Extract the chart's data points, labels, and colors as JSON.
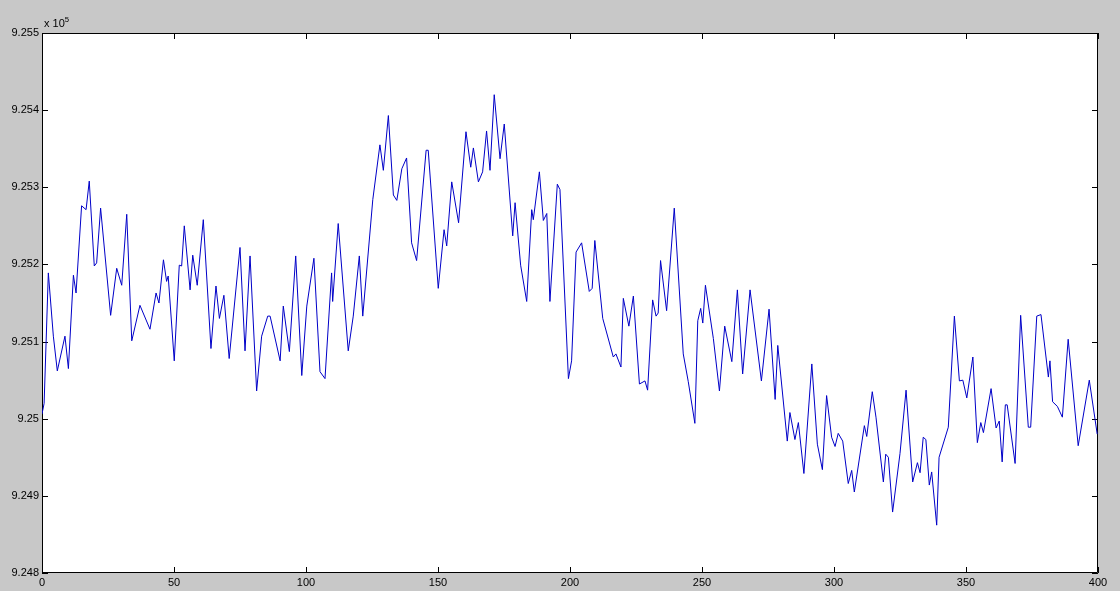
{
  "chart_data": {
    "type": "line",
    "annotations": [
      "x 10$^{5}$"
    ],
    "series": [
      {
        "color": "#0000c8",
        "x": [
          0,
          0.8,
          2.4,
          4.3,
          5.8,
          8.7,
          10,
          11.9,
          12.9,
          15,
          16.7,
          17.9,
          19.8,
          20.7,
          22.2,
          26,
          28.3,
          30.2,
          32.1,
          34,
          37.1,
          40.9,
          43.2,
          44.3,
          46,
          47.2,
          47.8,
          50.1,
          52,
          52.9,
          53.9,
          56.1,
          57.1,
          58.8,
          61.1,
          64,
          65.9,
          67.2,
          68.9,
          70.9,
          75,
          76.9,
          78.8,
          81.3,
          83.2,
          85.5,
          86.4,
          90.2,
          91.4,
          93.7,
          96.1,
          98.4,
          100.3,
          103,
          105.3,
          107.2,
          109.7,
          110.1,
          112.2,
          116,
          117.9,
          120.2,
          121.5,
          125.3,
          128,
          129.3,
          131.2,
          133.1,
          134.4,
          136.3,
          138.1,
          140,
          141.9,
          145.5,
          146.3,
          150.1,
          152.3,
          153.3,
          155.2,
          157.8,
          160.6,
          162.4,
          163.4,
          165.3,
          166.9,
          168.4,
          169.7,
          171.3,
          173.5,
          175.1,
          178.3,
          179.2,
          181.3,
          183.6,
          185.5,
          186.1,
          188.4,
          189.9,
          191.2,
          192.4,
          195.2,
          196.2,
          199.4,
          200.6,
          202.3,
          204.4,
          207.3,
          208.4,
          209.4,
          212.4,
          216.4,
          217.4,
          219.3,
          220.2,
          222.3,
          224,
          226.3,
          228.4,
          229.4,
          231.3,
          232.6,
          233.4,
          234.3,
          236.6,
          239.5,
          242.9,
          244.8,
          247.3,
          248.4,
          249.5,
          250.3,
          251.3,
          254.3,
          256.6,
          258.6,
          261.3,
          263.4,
          265.4,
          268.2,
          272.5,
          275.4,
          277.7,
          278.7,
          282.3,
          283.3,
          285.2,
          286.5,
          288.6,
          291.6,
          293.7,
          295.6,
          297.2,
          299.1,
          300.4,
          301.6,
          303.3,
          305.4,
          306.7,
          307.7,
          311.5,
          312.4,
          314.5,
          315.9,
          318.7,
          319.6,
          320.6,
          322.2,
          325,
          327.3,
          329.8,
          331.6,
          332.6,
          333.8,
          334.8,
          336.1,
          337,
          338.9,
          339.8,
          343.3,
          345.6,
          347.5,
          348.8,
          350.3,
          352.6,
          354.3,
          355.6,
          356.6,
          359.5,
          361.4,
          362.6,
          363.7,
          364.9,
          365.6,
          368.6,
          370.7,
          373.6,
          374.5,
          376.8,
          378.4,
          381.2,
          381.8,
          382.8,
          384.6,
          386.5,
          388.7,
          392.5,
          396.7,
          399.7
        ],
        "values": [
          9.25006,
          9.2502,
          9.25189,
          9.25107,
          9.25062,
          9.25107,
          9.25065,
          9.25186,
          9.25163,
          9.25276,
          9.25271,
          9.25308,
          9.25198,
          9.25202,
          9.25273,
          9.25134,
          9.25195,
          9.25173,
          9.25265,
          9.25101,
          9.25147,
          9.25116,
          9.25163,
          9.2515,
          9.25206,
          9.25178,
          9.25185,
          9.25075,
          9.25199,
          9.25198,
          9.2525,
          9.25167,
          9.25212,
          9.25173,
          9.25258,
          9.25091,
          9.25172,
          9.2513,
          9.2516,
          9.25078,
          9.25222,
          9.25088,
          9.25211,
          9.25036,
          9.25107,
          9.25133,
          9.25133,
          9.25075,
          9.25146,
          9.25087,
          9.25211,
          9.25056,
          9.25146,
          9.25208,
          9.25061,
          9.25052,
          9.25189,
          9.25152,
          9.25253,
          9.25088,
          9.25133,
          9.25211,
          9.25133,
          9.25284,
          9.25355,
          9.25322,
          9.25393,
          9.2529,
          9.25283,
          9.25324,
          9.25338,
          9.25228,
          9.25205,
          9.25348,
          9.25348,
          9.25169,
          9.25245,
          9.25224,
          9.25307,
          9.25254,
          9.25372,
          9.25326,
          9.25351,
          9.25307,
          9.2532,
          9.25373,
          9.25322,
          9.2542,
          9.25337,
          9.25382,
          9.25237,
          9.2528,
          9.25199,
          9.25152,
          9.25271,
          9.25258,
          9.2532,
          9.25257,
          9.25266,
          9.25152,
          9.25304,
          9.25297,
          9.25052,
          9.25075,
          9.25216,
          9.25228,
          9.25165,
          9.25169,
          9.25231,
          9.2513,
          9.2508,
          9.25084,
          9.25067,
          9.25156,
          9.2512,
          9.25159,
          9.25045,
          9.25049,
          9.25037,
          9.25154,
          9.25133,
          9.25137,
          9.25205,
          9.2514,
          9.25273,
          9.25084,
          9.25048,
          9.24994,
          9.25127,
          9.25143,
          9.25124,
          9.25173,
          9.25104,
          9.25036,
          9.2512,
          9.25074,
          9.25167,
          9.25058,
          9.25167,
          9.25049,
          9.25142,
          9.25025,
          9.25095,
          9.24971,
          9.25008,
          9.24973,
          9.24995,
          9.24929,
          9.25071,
          9.24967,
          9.24934,
          9.2503,
          9.24976,
          9.24964,
          9.24981,
          9.24971,
          9.24916,
          9.24933,
          9.24905,
          9.24991,
          9.24977,
          9.25035,
          9.25002,
          9.24918,
          9.24954,
          9.2495,
          9.24879,
          9.24955,
          9.25037,
          9.24918,
          9.24943,
          9.2493,
          9.24976,
          9.24973,
          9.24914,
          9.24931,
          9.24862,
          9.2495,
          9.24989,
          9.25133,
          9.25049,
          9.2505,
          9.25027,
          9.2508,
          9.24969,
          9.24995,
          9.24982,
          9.25039,
          9.24988,
          9.24997,
          9.24944,
          9.25018,
          9.25018,
          9.24942,
          9.25134,
          9.24989,
          9.24989,
          9.25133,
          9.25135,
          9.25054,
          9.25075,
          9.25022,
          9.25016,
          9.25002,
          9.25103,
          9.24965,
          9.2505,
          9.2498
        ]
      }
    ],
    "xlim": [
      0,
      400
    ],
    "xticks": [
      0,
      50,
      100,
      150,
      200,
      250,
      300,
      350,
      400
    ],
    "ylim": [
      9.248,
      9.255
    ],
    "yticks": [
      9.248,
      9.249,
      9.25,
      9.251,
      9.252,
      9.253,
      9.254,
      9.255
    ],
    "marker": "none",
    "line_style": "solid"
  }
}
